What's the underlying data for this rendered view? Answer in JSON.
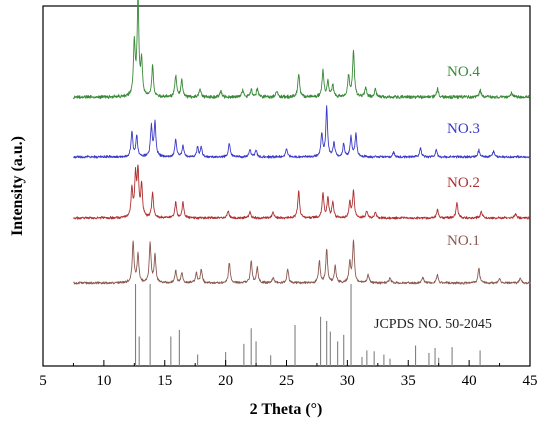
{
  "chart_data": {
    "type": "line",
    "xlabel": "2 Theta (°)",
    "ylabel": "Intensity (a.u.)",
    "xlim": [
      5,
      45
    ],
    "x_ticks": [
      "5",
      "10",
      "15",
      "20",
      "25",
      "30",
      "35",
      "40",
      "45"
    ],
    "y_ticks_shown": false,
    "colors": {
      "NO.4": "#3a8a3a",
      "NO.3": "#3a3ac8",
      "NO.2": "#b03030",
      "NO.1": "#8a5a50",
      "reference": "#808080"
    },
    "series": [
      {
        "name": "NO.4",
        "peaks": [
          [
            12.5,
            0.55
          ],
          [
            12.8,
            1.0
          ],
          [
            13.1,
            0.35
          ],
          [
            14.0,
            0.32
          ],
          [
            15.9,
            0.22
          ],
          [
            16.4,
            0.18
          ],
          [
            17.9,
            0.08
          ],
          [
            19.6,
            0.06
          ],
          [
            21.4,
            0.07
          ],
          [
            22.1,
            0.08
          ],
          [
            22.6,
            0.09
          ],
          [
            24.2,
            0.06
          ],
          [
            26.0,
            0.25
          ],
          [
            28.0,
            0.28
          ],
          [
            28.4,
            0.16
          ],
          [
            28.8,
            0.12
          ],
          [
            30.1,
            0.22
          ],
          [
            30.5,
            0.48
          ],
          [
            31.5,
            0.1
          ],
          [
            32.3,
            0.08
          ],
          [
            37.4,
            0.09
          ],
          [
            40.9,
            0.07
          ],
          [
            43.5,
            0.05
          ]
        ]
      },
      {
        "name": "NO.3",
        "peaks": [
          [
            12.3,
            0.35
          ],
          [
            12.7,
            0.28
          ],
          [
            13.9,
            0.42
          ],
          [
            14.2,
            0.48
          ],
          [
            15.9,
            0.25
          ],
          [
            16.5,
            0.15
          ],
          [
            17.7,
            0.13
          ],
          [
            18.0,
            0.13
          ],
          [
            20.3,
            0.2
          ],
          [
            22.0,
            0.1
          ],
          [
            22.5,
            0.1
          ],
          [
            25.0,
            0.12
          ],
          [
            27.9,
            0.32
          ],
          [
            28.3,
            0.68
          ],
          [
            28.9,
            0.2
          ],
          [
            29.7,
            0.18
          ],
          [
            30.3,
            0.28
          ],
          [
            30.7,
            0.32
          ],
          [
            33.8,
            0.07
          ],
          [
            36.0,
            0.13
          ],
          [
            37.3,
            0.09
          ],
          [
            40.8,
            0.1
          ],
          [
            42.0,
            0.08
          ]
        ]
      },
      {
        "name": "NO.2",
        "peaks": [
          [
            12.3,
            0.4
          ],
          [
            12.6,
            0.55
          ],
          [
            12.8,
            0.62
          ],
          [
            13.1,
            0.45
          ],
          [
            14.0,
            0.35
          ],
          [
            15.9,
            0.22
          ],
          [
            16.5,
            0.22
          ],
          [
            20.2,
            0.1
          ],
          [
            22.0,
            0.09
          ],
          [
            23.9,
            0.08
          ],
          [
            26.0,
            0.38
          ],
          [
            28.0,
            0.35
          ],
          [
            28.4,
            0.28
          ],
          [
            28.8,
            0.22
          ],
          [
            30.2,
            0.22
          ],
          [
            30.5,
            0.38
          ],
          [
            31.6,
            0.1
          ],
          [
            32.3,
            0.08
          ],
          [
            37.4,
            0.12
          ],
          [
            39.0,
            0.22
          ],
          [
            41.0,
            0.1
          ],
          [
            43.8,
            0.06
          ]
        ]
      },
      {
        "name": "NO.1",
        "peaks": [
          [
            12.4,
            0.6
          ],
          [
            12.8,
            0.42
          ],
          [
            13.8,
            0.58
          ],
          [
            14.2,
            0.4
          ],
          [
            15.9,
            0.18
          ],
          [
            16.4,
            0.15
          ],
          [
            17.6,
            0.15
          ],
          [
            18.0,
            0.2
          ],
          [
            20.3,
            0.3
          ],
          [
            22.1,
            0.33
          ],
          [
            22.6,
            0.22
          ],
          [
            23.9,
            0.08
          ],
          [
            25.1,
            0.2
          ],
          [
            27.7,
            0.32
          ],
          [
            28.3,
            0.5
          ],
          [
            29.0,
            0.25
          ],
          [
            30.2,
            0.3
          ],
          [
            30.5,
            0.62
          ],
          [
            31.7,
            0.13
          ],
          [
            33.5,
            0.08
          ],
          [
            36.2,
            0.08
          ],
          [
            37.4,
            0.12
          ],
          [
            40.8,
            0.22
          ],
          [
            42.5,
            0.06
          ],
          [
            44.2,
            0.07
          ]
        ]
      }
    ],
    "reference": {
      "name": "JCPDS NO. 50-2045",
      "lines": [
        [
          12.6,
          1.0
        ],
        [
          12.9,
          0.36
        ],
        [
          13.8,
          1.0
        ],
        [
          15.5,
          0.36
        ],
        [
          16.2,
          0.44
        ],
        [
          17.7,
          0.14
        ],
        [
          20.0,
          0.17
        ],
        [
          21.5,
          0.27
        ],
        [
          22.1,
          0.46
        ],
        [
          22.5,
          0.3
        ],
        [
          23.7,
          0.13
        ],
        [
          25.7,
          0.5
        ],
        [
          27.8,
          0.6
        ],
        [
          28.3,
          0.55
        ],
        [
          28.6,
          0.42
        ],
        [
          29.2,
          0.3
        ],
        [
          29.7,
          0.38
        ],
        [
          30.3,
          1.0
        ],
        [
          31.2,
          0.11
        ],
        [
          31.6,
          0.19
        ],
        [
          32.2,
          0.18
        ],
        [
          33.0,
          0.14
        ],
        [
          33.5,
          0.09
        ],
        [
          35.6,
          0.25
        ],
        [
          36.7,
          0.16
        ],
        [
          37.2,
          0.22
        ],
        [
          37.5,
          0.1
        ],
        [
          38.6,
          0.23
        ],
        [
          40.9,
          0.19
        ]
      ]
    }
  }
}
